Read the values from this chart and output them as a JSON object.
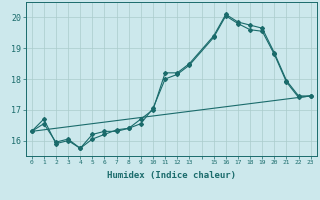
{
  "xlabel": "Humidex (Indice chaleur)",
  "bg_color": "#cce8ec",
  "grid_color": "#aacccc",
  "line_color": "#1a6b6b",
  "xlim": [
    -0.5,
    23.5
  ],
  "ylim": [
    15.5,
    20.5
  ],
  "yticks": [
    16,
    17,
    18,
    19,
    20
  ],
  "xtick_labels": [
    "0",
    "1",
    "2",
    "3",
    "4",
    "5",
    "6",
    "7",
    "8",
    "9",
    "10",
    "11",
    "12",
    "13",
    "",
    "15",
    "16",
    "17",
    "18",
    "19",
    "20",
    "21",
    "22",
    "23"
  ],
  "line1_x": [
    0,
    1,
    2,
    3,
    4,
    5,
    6,
    7,
    8,
    9,
    10,
    11,
    12,
    13,
    15,
    16,
    17,
    18,
    19,
    20,
    21,
    22,
    23
  ],
  "line1_y": [
    16.3,
    16.7,
    15.9,
    16.0,
    15.75,
    16.2,
    16.3,
    16.3,
    16.4,
    16.7,
    17.0,
    18.2,
    18.2,
    18.5,
    19.4,
    20.1,
    19.85,
    19.75,
    19.65,
    18.85,
    17.95,
    17.45,
    17.45
  ],
  "line2_x": [
    0,
    23
  ],
  "line2_y": [
    16.3,
    17.45
  ],
  "line3_x": [
    0,
    1,
    2,
    3,
    4,
    5,
    6,
    7,
    8,
    9,
    10,
    11,
    12,
    13,
    15,
    16,
    17,
    18,
    19,
    20,
    21,
    22,
    23
  ],
  "line3_y": [
    16.3,
    16.55,
    15.95,
    16.05,
    15.75,
    16.05,
    16.2,
    16.35,
    16.4,
    16.55,
    17.05,
    18.0,
    18.15,
    18.45,
    19.35,
    20.05,
    19.8,
    19.6,
    19.55,
    18.8,
    17.9,
    17.4,
    17.45
  ]
}
